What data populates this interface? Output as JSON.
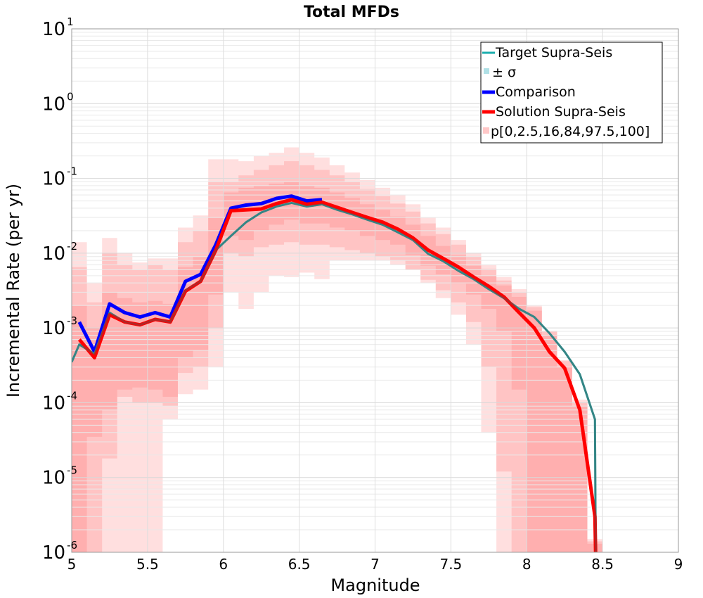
{
  "chart_data": {
    "type": "line",
    "title": "Total MFDs",
    "xlabel": "Magnitude",
    "ylabel": "Incremental Rate (per yr)",
    "xlim": [
      5,
      9
    ],
    "ylim_log10": [
      -6,
      1
    ],
    "y_scale": "log",
    "grid": true,
    "legend_position": "top-right",
    "x_ticks": [
      "5",
      "5.5",
      "6",
      "6.5",
      "7",
      "7.5",
      "8",
      "8.5",
      "9"
    ],
    "y_ticks": [
      {
        "base": "10",
        "exp": "1"
      },
      {
        "base": "10",
        "exp": "0"
      },
      {
        "base": "10",
        "exp": "-1"
      },
      {
        "base": "10",
        "exp": "-2"
      },
      {
        "base": "10",
        "exp": "-3"
      },
      {
        "base": "10",
        "exp": "-4"
      },
      {
        "base": "10",
        "exp": "-5"
      },
      {
        "base": "10",
        "exp": "-6"
      }
    ],
    "x": [
      5.05,
      5.15,
      5.25,
      5.35,
      5.45,
      5.55,
      5.65,
      5.75,
      5.85,
      5.95,
      6.05,
      6.15,
      6.25,
      6.35,
      6.45,
      6.55,
      6.65,
      6.75,
      6.85,
      6.95,
      7.05,
      7.15,
      7.25,
      7.35,
      7.45,
      7.55,
      7.65,
      7.75,
      7.85,
      7.95,
      8.05,
      8.15,
      8.25,
      8.35,
      8.45
    ],
    "series": [
      {
        "name": "Target Supra-Seis",
        "color": "#1aaeae",
        "x": [
          5.0,
          5.05,
          5.15,
          5.25,
          5.35,
          5.45,
          5.55,
          5.65,
          5.75,
          5.85,
          5.95,
          6.05,
          6.15,
          6.25,
          6.35,
          6.45,
          6.55,
          6.65,
          6.75,
          6.85,
          6.95,
          7.05,
          7.15,
          7.25,
          7.35,
          7.45,
          7.55,
          7.65,
          7.75,
          7.85,
          7.95,
          8.05,
          8.15,
          8.25,
          8.35,
          8.45,
          8.455
        ],
        "values": [
          0.00035,
          0.0006,
          0.00045,
          0.0016,
          0.0012,
          0.0011,
          0.0013,
          0.0012,
          0.0032,
          0.0042,
          0.011,
          0.017,
          0.026,
          0.035,
          0.042,
          0.047,
          0.042,
          0.045,
          0.038,
          0.033,
          0.028,
          0.024,
          0.019,
          0.015,
          0.0098,
          0.0078,
          0.0058,
          0.0045,
          0.0033,
          0.0025,
          0.0018,
          0.0014,
          0.00085,
          0.00048,
          0.00024,
          6e-05,
          1e-06
        ]
      },
      {
        "name": "± σ",
        "color": "#b0e0e6"
      },
      {
        "name": "Comparison",
        "color": "#0000ff",
        "x": [
          5.05,
          5.15,
          5.25,
          5.35,
          5.45,
          5.55,
          5.65,
          5.75,
          5.85,
          5.95,
          6.05,
          6.15,
          6.25,
          6.35,
          6.45,
          6.55,
          6.65
        ],
        "values": [
          0.0012,
          0.00048,
          0.0021,
          0.0016,
          0.0014,
          0.0016,
          0.0014,
          0.0042,
          0.0052,
          0.013,
          0.04,
          0.044,
          0.046,
          0.054,
          0.058,
          0.05,
          0.052
        ]
      },
      {
        "name": "Solution Supra-Seis",
        "color": "#ff0000",
        "x": [
          5.05,
          5.15,
          5.25,
          5.35,
          5.45,
          5.55,
          5.65,
          5.75,
          5.85,
          5.95,
          6.05,
          6.15,
          6.25,
          6.35,
          6.45,
          6.55,
          6.65,
          6.75,
          6.85,
          6.95,
          7.05,
          7.15,
          7.25,
          7.35,
          7.45,
          7.55,
          7.65,
          7.75,
          7.85,
          7.95,
          8.05,
          8.15,
          8.25,
          8.35,
          8.45,
          8.455
        ],
        "values": [
          0.0007,
          0.0004,
          0.0015,
          0.0012,
          0.0011,
          0.0013,
          0.0012,
          0.0031,
          0.0042,
          0.011,
          0.037,
          0.038,
          0.039,
          0.046,
          0.052,
          0.045,
          0.048,
          0.041,
          0.035,
          0.03,
          0.026,
          0.021,
          0.016,
          0.011,
          0.0085,
          0.0065,
          0.0048,
          0.0036,
          0.0026,
          0.0016,
          0.001,
          0.00048,
          0.00029,
          8e-05,
          3e-06,
          8e-07
        ]
      },
      {
        "name": "p[0,2.5,16,84,97.5,100]",
        "color": "#ffc8c8"
      }
    ],
    "percentile_bands": [
      {
        "label": "p0-p100",
        "opacity": 0.32,
        "lower": [
          5e-07,
          5e-07,
          5e-07,
          5e-07,
          5e-07,
          5e-07,
          6e-05,
          0.00013,
          0.00015,
          0.0003,
          0.003,
          0.0018,
          0.003,
          0.005,
          0.0048,
          0.0055,
          0.0045,
          0.008,
          0.008,
          0.008,
          0.008,
          0.007,
          0.006,
          0.004,
          0.0025,
          0.0015,
          0.0006,
          4e-05,
          5e-07,
          5e-07,
          5e-07,
          5e-07,
          5e-07,
          5e-07,
          5e-07
        ],
        "upper": [
          0.014,
          0.004,
          0.016,
          0.01,
          0.0075,
          0.0085,
          0.0085,
          0.022,
          0.032,
          0.18,
          0.18,
          0.17,
          0.2,
          0.22,
          0.26,
          0.22,
          0.19,
          0.15,
          0.12,
          0.095,
          0.075,
          0.06,
          0.045,
          0.03,
          0.022,
          0.015,
          0.01,
          0.007,
          0.0048,
          0.0033,
          0.002,
          0.00092,
          0.00037,
          0.00011,
          1.5e-06
        ]
      },
      {
        "label": "p2.5-p97.5",
        "opacity": 0.4,
        "lower": [
          5e-07,
          5e-07,
          1.8e-05,
          0.00012,
          0.0001,
          0.0001,
          9e-05,
          0.00025,
          0.0003,
          0.001,
          0.01,
          0.009,
          0.012,
          0.013,
          0.014,
          0.013,
          0.013,
          0.012,
          0.011,
          0.01,
          0.009,
          0.008,
          0.006,
          0.0044,
          0.0032,
          0.0022,
          0.0012,
          0.0003,
          1.2e-05,
          5e-07,
          5e-07,
          5e-07,
          5e-07,
          5e-07,
          5e-07
        ],
        "upper": [
          0.0065,
          0.0022,
          0.01,
          0.007,
          0.006,
          0.007,
          0.006,
          0.014,
          0.02,
          0.09,
          0.09,
          0.11,
          0.13,
          0.15,
          0.17,
          0.15,
          0.13,
          0.11,
          0.09,
          0.072,
          0.058,
          0.046,
          0.036,
          0.025,
          0.018,
          0.013,
          0.009,
          0.0062,
          0.0043,
          0.003,
          0.0019,
          0.0009,
          0.00036,
          0.0001,
          1.4e-06
        ]
      },
      {
        "label": "p16-p84",
        "opacity": 0.5,
        "lower": [
          5e-07,
          3.5e-05,
          8e-05,
          0.00015,
          0.00016,
          0.00015,
          0.00012,
          0.0004,
          0.0005,
          0.0028,
          0.017,
          0.015,
          0.02,
          0.024,
          0.028,
          0.025,
          0.025,
          0.022,
          0.02,
          0.017,
          0.015,
          0.013,
          0.0095,
          0.0068,
          0.0052,
          0.0039,
          0.0028,
          0.0018,
          0.0009,
          0.00015,
          5e-07,
          5e-07,
          5e-07,
          5e-07,
          5e-07
        ],
        "upper": [
          0.002,
          0.001,
          0.003,
          0.0025,
          0.0022,
          0.0023,
          0.0021,
          0.0065,
          0.009,
          0.03,
          0.065,
          0.075,
          0.08,
          0.085,
          0.09,
          0.08,
          0.075,
          0.065,
          0.055,
          0.045,
          0.038,
          0.031,
          0.024,
          0.017,
          0.0125,
          0.0093,
          0.0068,
          0.005,
          0.0037,
          0.0026,
          0.0017,
          0.0008,
          0.0003,
          9e-05,
          1.3e-06
        ]
      }
    ]
  }
}
